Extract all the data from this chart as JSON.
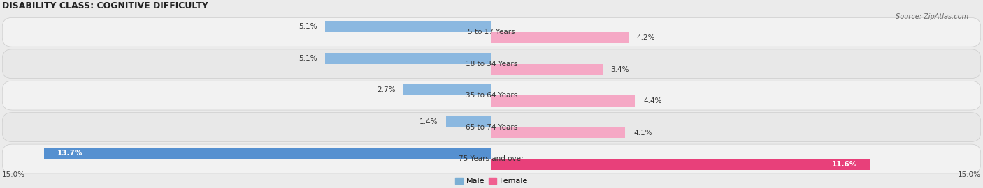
{
  "title": "DISABILITY CLASS: COGNITIVE DIFFICULTY",
  "source": "Source: ZipAtlas.com",
  "categories": [
    "5 to 17 Years",
    "18 to 34 Years",
    "35 to 64 Years",
    "65 to 74 Years",
    "75 Years and over"
  ],
  "male_values": [
    5.1,
    5.1,
    2.7,
    1.4,
    13.7
  ],
  "female_values": [
    4.2,
    3.4,
    4.4,
    4.1,
    11.6
  ],
  "male_color_normal": "#8bb8e0",
  "male_color_highlight": "#5590d0",
  "female_color_normal": "#f5a8c5",
  "female_color_highlight": "#e8407a",
  "bg_color": "#ebebeb",
  "row_bg_even": "#f2f2f2",
  "row_bg_odd": "#e8e8e8",
  "max_val": 15.0,
  "legend_male_color": "#7bafd4",
  "legend_female_color": "#f06090",
  "title_fontsize": 9,
  "label_fontsize": 7.5,
  "cat_fontsize": 7.5
}
